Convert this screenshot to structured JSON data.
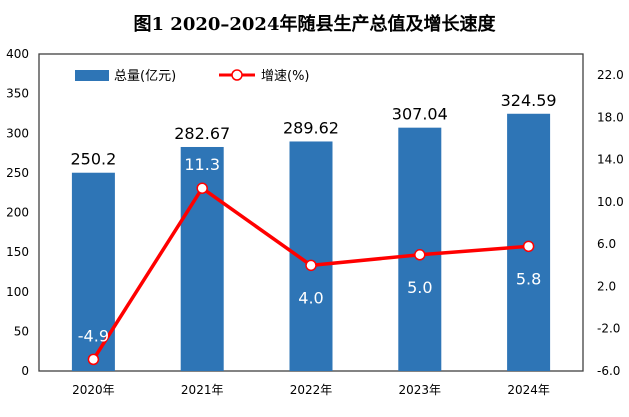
{
  "chart_data": {
    "type": "bar+line",
    "title": "图1   2020–2024年随县生产总值及增长速度",
    "categories": [
      "2020年",
      "2021年",
      "2022年",
      "2023年",
      "2024年"
    ],
    "series": [
      {
        "name": "总量(亿元)",
        "type": "bar",
        "axis": "left",
        "color": "#2E75B6",
        "values": [
          250.2,
          282.67,
          289.62,
          307.04,
          324.59
        ],
        "labels": [
          "250.2",
          "282.67",
          "289.62",
          "307.04",
          "324.59"
        ]
      },
      {
        "name": "增速(%)",
        "type": "line",
        "axis": "right",
        "color": "#FF0000",
        "values": [
          -4.9,
          11.3,
          4.0,
          5.0,
          5.8
        ],
        "labels": [
          "-4.9",
          "11.3",
          "4.0",
          "5.0",
          "5.8"
        ]
      }
    ],
    "left_axis": {
      "ylim": [
        0,
        400
      ],
      "ticks": [
        "0",
        "50",
        "100",
        "150",
        "200",
        "250",
        "300",
        "350",
        "400"
      ]
    },
    "right_axis": {
      "ylim": [
        -6,
        24
      ],
      "ticks": [
        "-6.0",
        "-2.0",
        "2.0",
        "6.0",
        "10.0",
        "14.0",
        "18.0",
        "22.0"
      ]
    },
    "grid": false,
    "legend": "top-left"
  }
}
